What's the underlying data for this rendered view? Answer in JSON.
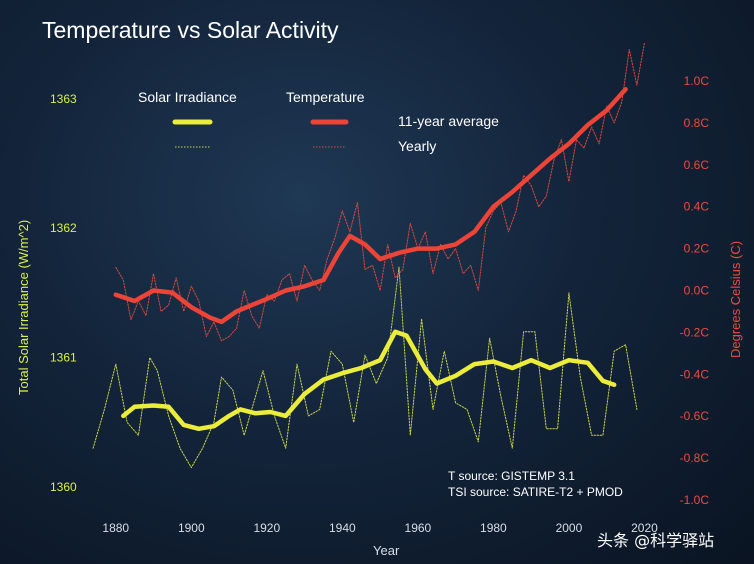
{
  "colors": {
    "background": "#13243a",
    "temperature": "#ee4438",
    "solar": "#ecec3a"
  },
  "watermark": "头条 @科学驿站",
  "chart_data": {
    "type": "line",
    "title": "Temperature vs Solar Activity",
    "xlabel": "Year",
    "ylabel_left": "Total Solar Irradiance (W/m^2)",
    "ylabel_right": "Degrees Celsius (C)",
    "xlim": [
      1870,
      2022
    ],
    "ylim_left": [
      1359.9,
      1363.3
    ],
    "ylim_right": [
      -1.0,
      1.1
    ],
    "x_ticks": [
      "1880",
      "1900",
      "1920",
      "1940",
      "1960",
      "1980",
      "2000",
      "2020"
    ],
    "y_ticks_left": [
      "1363",
      "1362",
      "1361",
      "1360"
    ],
    "y_ticks_right": [
      "1.0C",
      "0.8C",
      "0.6C",
      "0.4C",
      "0.2C",
      "0.0C",
      "-0.2C",
      "-0.4C",
      "-0.6C",
      "-0.8C",
      "-1.0C"
    ],
    "legend": {
      "solar_label": "Solar Irradiance",
      "temperature_label": "Temperature",
      "average_label": "11-year average",
      "yearly_label": "Yearly"
    },
    "sources": [
      "T source: GISTEMP 3.1",
      "TSI source: SATIRE-T2 + PMOD"
    ],
    "grid": false,
    "series": [
      {
        "name": "Temperature 11-year average",
        "axis": "right",
        "x": [
          1880,
          1885,
          1890,
          1895,
          1900,
          1905,
          1908,
          1912,
          1916,
          1920,
          1925,
          1930,
          1935,
          1939,
          1942,
          1946,
          1950,
          1955,
          1960,
          1965,
          1970,
          1975,
          1980,
          1985,
          1990,
          1995,
          2000,
          2005,
          2010,
          2015
        ],
        "values": [
          -0.02,
          -0.05,
          0.0,
          -0.01,
          -0.08,
          -0.13,
          -0.15,
          -0.1,
          -0.07,
          -0.04,
          0.0,
          0.02,
          0.05,
          0.18,
          0.26,
          0.22,
          0.15,
          0.18,
          0.2,
          0.2,
          0.22,
          0.28,
          0.4,
          0.47,
          0.55,
          0.63,
          0.7,
          0.79,
          0.86,
          0.96
        ]
      },
      {
        "name": "Temperature yearly",
        "axis": "right",
        "x": [
          1880,
          1882,
          1884,
          1886,
          1888,
          1890,
          1892,
          1894,
          1896,
          1898,
          1900,
          1902,
          1904,
          1906,
          1908,
          1910,
          1912,
          1914,
          1916,
          1918,
          1920,
          1922,
          1924,
          1926,
          1928,
          1930,
          1932,
          1934,
          1936,
          1938,
          1940,
          1942,
          1944,
          1946,
          1948,
          1950,
          1952,
          1954,
          1956,
          1958,
          1960,
          1962,
          1964,
          1966,
          1968,
          1970,
          1972,
          1974,
          1976,
          1978,
          1980,
          1982,
          1984,
          1986,
          1988,
          1990,
          1992,
          1994,
          1996,
          1998,
          2000,
          2002,
          2004,
          2006,
          2008,
          2010,
          2012,
          2014,
          2016,
          2018,
          2020
        ],
        "values": [
          0.11,
          0.05,
          -0.14,
          -0.05,
          -0.12,
          0.08,
          -0.1,
          -0.07,
          0.06,
          -0.1,
          0.02,
          -0.05,
          -0.22,
          -0.15,
          -0.24,
          -0.22,
          -0.18,
          0.0,
          -0.12,
          -0.18,
          -0.02,
          -0.05,
          0.05,
          0.08,
          -0.05,
          0.12,
          0.05,
          0.0,
          0.15,
          0.25,
          0.38,
          0.28,
          0.42,
          0.1,
          0.12,
          0.0,
          0.22,
          0.06,
          0.1,
          0.32,
          0.2,
          0.28,
          0.08,
          0.22,
          0.15,
          0.2,
          0.08,
          0.12,
          0.0,
          0.3,
          0.38,
          0.42,
          0.28,
          0.38,
          0.55,
          0.5,
          0.4,
          0.45,
          0.62,
          0.72,
          0.52,
          0.72,
          0.68,
          0.78,
          0.7,
          0.88,
          0.8,
          0.9,
          1.15,
          0.98,
          1.18
        ]
      },
      {
        "name": "Solar Irradiance 11-year average",
        "axis": "left",
        "x": [
          1882,
          1885,
          1890,
          1894,
          1898,
          1902,
          1906,
          1910,
          1913,
          1917,
          1921,
          1925,
          1930,
          1935,
          1940,
          1945,
          1950,
          1954,
          1957,
          1962,
          1965,
          1970,
          1975,
          1980,
          1985,
          1990,
          1995,
          2000,
          2005,
          2009,
          2012
        ],
        "values": [
          1360.55,
          1360.62,
          1360.63,
          1360.62,
          1360.48,
          1360.45,
          1360.47,
          1360.55,
          1360.6,
          1360.57,
          1360.58,
          1360.55,
          1360.72,
          1360.83,
          1360.88,
          1360.92,
          1360.98,
          1361.2,
          1361.17,
          1360.91,
          1360.8,
          1360.86,
          1360.95,
          1360.97,
          1360.92,
          1360.98,
          1360.92,
          1360.98,
          1360.96,
          1360.82,
          1360.79
        ]
      },
      {
        "name": "Solar Irradiance yearly",
        "axis": "left",
        "x": [
          1874,
          1877,
          1880,
          1883,
          1886,
          1889,
          1891,
          1894,
          1897,
          1900,
          1903,
          1906,
          1908,
          1911,
          1914,
          1917,
          1919,
          1922,
          1925,
          1928,
          1931,
          1934,
          1937,
          1940,
          1943,
          1946,
          1949,
          1952,
          1955,
          1958,
          1961,
          1964,
          1967,
          1970,
          1973,
          1976,
          1979,
          1982,
          1985,
          1988,
          1991,
          1994,
          1997,
          2000,
          2003,
          2006,
          2009,
          2012,
          2015,
          2018
        ],
        "values": [
          1360.3,
          1360.6,
          1360.95,
          1360.5,
          1360.4,
          1361.0,
          1360.9,
          1360.55,
          1360.3,
          1360.15,
          1360.3,
          1360.5,
          1360.85,
          1360.75,
          1360.4,
          1360.7,
          1360.9,
          1360.55,
          1360.3,
          1360.95,
          1360.55,
          1360.6,
          1361.05,
          1360.95,
          1360.5,
          1361.02,
          1360.8,
          1361.0,
          1361.7,
          1360.4,
          1361.3,
          1360.6,
          1361.05,
          1360.65,
          1360.6,
          1360.35,
          1361.15,
          1360.7,
          1360.3,
          1361.2,
          1361.2,
          1360.45,
          1360.45,
          1361.5,
          1360.85,
          1360.4,
          1360.4,
          1361.05,
          1361.1,
          1360.6
        ]
      }
    ]
  }
}
